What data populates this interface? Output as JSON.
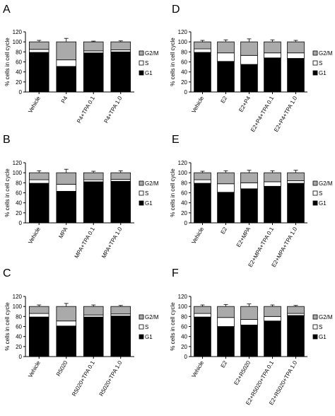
{
  "figure_domain_colors": {
    "g1": "#000000",
    "s": "#ffffff",
    "g2m": "#aaaaaa",
    "axis": "#000000"
  },
  "legend_labels": [
    "G2/M",
    "S",
    "G1"
  ],
  "chart_data": [
    {
      "id": "A",
      "letter": "A",
      "type": "bar",
      "stacked": true,
      "ylabel": "% cells in cell cycle",
      "ylim": [
        0,
        120
      ],
      "yticks": [
        "0",
        "20",
        "40",
        "60",
        "80",
        "100",
        "120"
      ],
      "categories": [
        "Vehicle",
        "P4",
        "P4+TPA 0.1",
        "P4+TPA 1.0"
      ],
      "series": [
        {
          "name": "G1",
          "values": [
            79,
            51,
            78,
            80
          ]
        },
        {
          "name": "S",
          "values": [
            6,
            13,
            4,
            4
          ]
        },
        {
          "name": "G2/M",
          "values": [
            15,
            36,
            18,
            16
          ]
        }
      ],
      "errors": {
        "G1": [
          2,
          3,
          1.5,
          1.5
        ],
        "S": [
          3,
          4,
          2,
          2
        ],
        "G2/M": [
          3,
          7,
          1.5,
          2
        ]
      },
      "legend": "right"
    },
    {
      "id": "B",
      "letter": "B",
      "type": "bar",
      "stacked": true,
      "ylabel": "% cells in cell cycle",
      "ylim": [
        0,
        120
      ],
      "yticks": [
        "0",
        "20",
        "40",
        "60",
        "80",
        "100",
        "120"
      ],
      "categories": [
        "Vehicle",
        "MPA",
        "MPA+TPA 0.1",
        "MPA+TPA 1.0"
      ],
      "series": [
        {
          "name": "G1",
          "values": [
            79,
            63,
            82,
            83
          ]
        },
        {
          "name": "S",
          "values": [
            7,
            14,
            4,
            4
          ]
        },
        {
          "name": "G2/M",
          "values": [
            14,
            23,
            14,
            13
          ]
        }
      ],
      "errors": {
        "G1": [
          2,
          5,
          1.5,
          1.5
        ],
        "S": [
          4,
          5,
          2,
          2
        ],
        "G2/M": [
          4,
          7,
          3,
          4
        ]
      },
      "legend": "right"
    },
    {
      "id": "C",
      "letter": "C",
      "type": "bar",
      "stacked": true,
      "ylabel": "% cells in cell cycle",
      "ylim": [
        0,
        120
      ],
      "yticks": [
        "0",
        "20",
        "40",
        "60",
        "80",
        "100",
        "120"
      ],
      "categories": [
        "Vehicle",
        "R5020",
        "R5020+TPA 0.1",
        "R5020+TPA 1.0"
      ],
      "series": [
        {
          "name": "G1",
          "values": [
            79,
            61,
            79,
            81
          ]
        },
        {
          "name": "S",
          "values": [
            7,
            10,
            4,
            4
          ]
        },
        {
          "name": "G2/M",
          "values": [
            14,
            29,
            17,
            15
          ]
        }
      ],
      "errors": {
        "G1": [
          2,
          4,
          1.5,
          1.5
        ],
        "S": [
          3,
          4,
          2,
          2
        ],
        "G2/M": [
          3,
          6,
          3,
          2
        ]
      },
      "legend": "right"
    },
    {
      "id": "D",
      "letter": "D",
      "type": "bar",
      "stacked": true,
      "ylabel": "% cells in cell cycle",
      "ylim": [
        0,
        120
      ],
      "yticks": [
        "0",
        "20",
        "40",
        "60",
        "80",
        "100",
        "120"
      ],
      "categories": [
        "Vehicle",
        "E2",
        "E2+P4",
        "E2+P4+TPA 0.1",
        "E2+P4+TPA 1.0"
      ],
      "series": [
        {
          "name": "G1",
          "values": [
            79,
            61,
            55,
            68,
            67
          ]
        },
        {
          "name": "S",
          "values": [
            7,
            17,
            18,
            10,
            11
          ]
        },
        {
          "name": "G2/M",
          "values": [
            14,
            22,
            27,
            22,
            22
          ]
        }
      ],
      "errors": {
        "G1": [
          2,
          8,
          3,
          5,
          4
        ],
        "S": [
          3,
          5,
          4,
          3,
          3
        ],
        "G2/M": [
          3,
          4,
          6,
          4,
          3
        ]
      },
      "legend": "right"
    },
    {
      "id": "E",
      "letter": "E",
      "type": "bar",
      "stacked": true,
      "ylabel": "% cells in cell cycle",
      "ylim": [
        0,
        120
      ],
      "yticks": [
        "0",
        "20",
        "40",
        "60",
        "80",
        "100",
        "120"
      ],
      "categories": [
        "Vehicle",
        "E2",
        "E2+MPA",
        "E2+MPA+TPA 0.1",
        "E2+MPA+TPA 1.0"
      ],
      "series": [
        {
          "name": "G1",
          "values": [
            79,
            61,
            68,
            73,
            79
          ]
        },
        {
          "name": "S",
          "values": [
            7,
            17,
            12,
            9,
            5
          ]
        },
        {
          "name": "G2/M",
          "values": [
            14,
            22,
            20,
            18,
            16
          ]
        }
      ],
      "errors": {
        "G1": [
          2,
          8,
          5,
          4,
          3
        ],
        "S": [
          3,
          5,
          4,
          3,
          3
        ],
        "G2/M": [
          3,
          4,
          5,
          4,
          5
        ]
      },
      "legend": "right"
    },
    {
      "id": "F",
      "letter": "F",
      "type": "bar",
      "stacked": true,
      "ylabel": "% cells in cell cycle",
      "ylim": [
        0,
        120
      ],
      "yticks": [
        "0",
        "20",
        "40",
        "60",
        "80",
        "100",
        "120"
      ],
      "categories": [
        "Vehicle",
        "E2",
        "E2+R5020",
        "E2+R5020+TPA 0.1",
        "E2+R5020+TPA 1.0"
      ],
      "series": [
        {
          "name": "G1",
          "values": [
            79,
            60,
            63,
            71,
            82
          ]
        },
        {
          "name": "S",
          "values": [
            7,
            18,
            11,
            9,
            4
          ]
        },
        {
          "name": "G2/M",
          "values": [
            14,
            22,
            26,
            20,
            14
          ]
        }
      ],
      "errors": {
        "G1": [
          2,
          8,
          6,
          3,
          2
        ],
        "S": [
          3,
          5,
          5,
          3,
          2
        ],
        "G2/M": [
          3,
          4,
          5,
          3,
          2
        ]
      },
      "legend": "right"
    }
  ]
}
